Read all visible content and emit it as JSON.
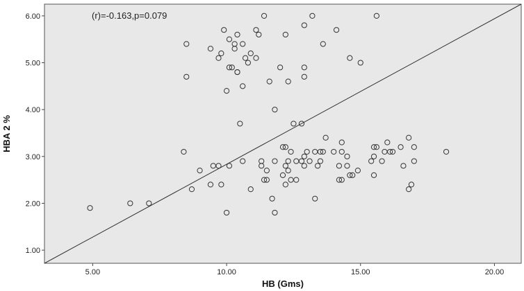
{
  "chart_data": {
    "type": "scatter",
    "annotation": "(r)=-0.163,p=0.079",
    "xlabel": "HB (Gms)",
    "ylabel": "HBA 2 %",
    "xlim": [
      3.2,
      21.0
    ],
    "ylim": [
      0.72,
      6.25
    ],
    "x_ticks": [
      5.0,
      10.0,
      15.0,
      20.0
    ],
    "x_tick_labels": [
      "5.00",
      "10.00",
      "15.00",
      "20.00"
    ],
    "y_ticks": [
      1.0,
      2.0,
      3.0,
      4.0,
      5.0,
      6.0
    ],
    "y_tick_labels": [
      "1.00",
      "2.00",
      "3.00",
      "4.00",
      "5.00",
      "6.00"
    ],
    "grid": false,
    "reference_line": {
      "from": [
        3.2,
        0.72
      ],
      "to": [
        21.0,
        6.25
      ]
    },
    "colors": {
      "background": "#e8e8e8",
      "marker": "#333333",
      "line": "#333333"
    },
    "points": [
      [
        4.9,
        1.9
      ],
      [
        6.4,
        2.0
      ],
      [
        7.1,
        2.0
      ],
      [
        8.4,
        3.1
      ],
      [
        8.5,
        5.4
      ],
      [
        8.5,
        4.7
      ],
      [
        8.7,
        2.3
      ],
      [
        9.0,
        2.7
      ],
      [
        9.4,
        5.3
      ],
      [
        9.4,
        2.4
      ],
      [
        9.5,
        2.8
      ],
      [
        9.7,
        5.1
      ],
      [
        9.7,
        2.8
      ],
      [
        9.8,
        5.2
      ],
      [
        9.8,
        2.4
      ],
      [
        9.9,
        5.7
      ],
      [
        10.0,
        4.4
      ],
      [
        10.0,
        1.8
      ],
      [
        10.1,
        4.9
      ],
      [
        10.1,
        5.5
      ],
      [
        10.1,
        2.8
      ],
      [
        10.2,
        4.9
      ],
      [
        10.3,
        5.4
      ],
      [
        10.3,
        5.3
      ],
      [
        10.4,
        5.6
      ],
      [
        10.4,
        4.8
      ],
      [
        10.4,
        4.8
      ],
      [
        10.5,
        3.7
      ],
      [
        10.6,
        5.4
      ],
      [
        10.6,
        4.5
      ],
      [
        10.6,
        2.9
      ],
      [
        10.7,
        5.1
      ],
      [
        10.8,
        5.0
      ],
      [
        10.9,
        5.2
      ],
      [
        10.9,
        2.3
      ],
      [
        11.1,
        5.7
      ],
      [
        11.1,
        5.1
      ],
      [
        11.2,
        5.6
      ],
      [
        11.3,
        2.9
      ],
      [
        11.3,
        2.8
      ],
      [
        11.4,
        6.0
      ],
      [
        11.4,
        2.5
      ],
      [
        11.5,
        2.7
      ],
      [
        11.5,
        2.5
      ],
      [
        11.6,
        4.6
      ],
      [
        11.7,
        2.1
      ],
      [
        11.8,
        4.0
      ],
      [
        11.8,
        2.9
      ],
      [
        11.8,
        1.8
      ],
      [
        12.0,
        4.9
      ],
      [
        12.1,
        3.2
      ],
      [
        12.1,
        2.6
      ],
      [
        12.2,
        5.6
      ],
      [
        12.2,
        3.2
      ],
      [
        12.2,
        2.8
      ],
      [
        12.2,
        2.4
      ],
      [
        12.3,
        4.6
      ],
      [
        12.3,
        2.9
      ],
      [
        12.3,
        2.7
      ],
      [
        12.4,
        3.1
      ],
      [
        12.4,
        2.5
      ],
      [
        12.5,
        3.7
      ],
      [
        12.6,
        2.9
      ],
      [
        12.6,
        2.5
      ],
      [
        12.8,
        3.7
      ],
      [
        12.8,
        2.9
      ],
      [
        12.9,
        5.8
      ],
      [
        12.9,
        4.9
      ],
      [
        12.9,
        4.7
      ],
      [
        12.9,
        3.0
      ],
      [
        12.9,
        2.8
      ],
      [
        13.0,
        3.1
      ],
      [
        13.1,
        2.9
      ],
      [
        13.2,
        6.0
      ],
      [
        13.3,
        2.1
      ],
      [
        13.3,
        3.1
      ],
      [
        13.4,
        2.8
      ],
      [
        13.5,
        3.1
      ],
      [
        13.5,
        2.9
      ],
      [
        13.6,
        5.4
      ],
      [
        13.6,
        3.1
      ],
      [
        13.7,
        3.4
      ],
      [
        14.0,
        3.1
      ],
      [
        14.1,
        5.7
      ],
      [
        14.2,
        2.8
      ],
      [
        14.2,
        2.5
      ],
      [
        14.3,
        3.3
      ],
      [
        14.3,
        3.1
      ],
      [
        14.3,
        2.5
      ],
      [
        14.5,
        3.0
      ],
      [
        14.5,
        2.8
      ],
      [
        14.6,
        5.1
      ],
      [
        14.6,
        2.6
      ],
      [
        14.7,
        2.6
      ],
      [
        14.9,
        2.7
      ],
      [
        15.0,
        5.0
      ],
      [
        15.4,
        2.9
      ],
      [
        15.5,
        3.2
      ],
      [
        15.5,
        3.0
      ],
      [
        15.5,
        2.6
      ],
      [
        15.6,
        6.0
      ],
      [
        15.6,
        3.2
      ],
      [
        15.8,
        2.9
      ],
      [
        15.9,
        3.1
      ],
      [
        16.0,
        3.3
      ],
      [
        16.1,
        3.1
      ],
      [
        16.2,
        3.1
      ],
      [
        16.5,
        3.2
      ],
      [
        16.6,
        2.8
      ],
      [
        16.8,
        3.4
      ],
      [
        16.8,
        2.3
      ],
      [
        16.9,
        2.4
      ],
      [
        17.0,
        3.2
      ],
      [
        17.0,
        2.9
      ],
      [
        18.2,
        3.1
      ]
    ]
  }
}
